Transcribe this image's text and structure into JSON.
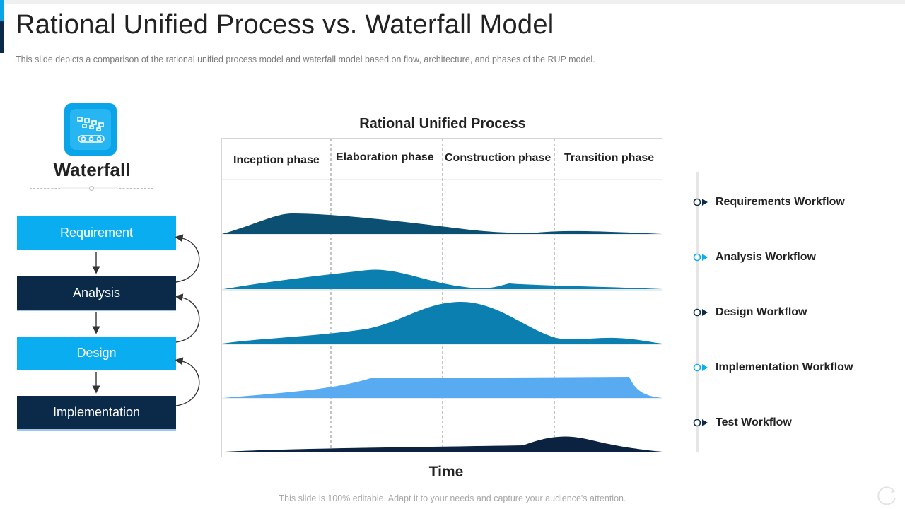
{
  "slide": {
    "title": "Rational Unified Process vs. Waterfall Model",
    "subtitle": "This slide depicts a comparison of the rational unified process model and waterfall model based on flow, architecture, and phases of the RUP model.",
    "footer": "This slide is 100% editable. Adapt it to your needs and capture your audience's attention."
  },
  "waterfall": {
    "title": "Waterfall",
    "icon": "conveyor-icon",
    "steps": [
      {
        "label": "Requirement",
        "style": "light"
      },
      {
        "label": "Analysis",
        "style": "dark"
      },
      {
        "label": "Design",
        "style": "light"
      },
      {
        "label": "Implementation",
        "style": "dark"
      }
    ]
  },
  "rup": {
    "title": "Rational Unified Process",
    "phases": [
      "Inception phase",
      "Elaboration phase",
      "Construction phase",
      "Transition phase"
    ],
    "x_label": "Time",
    "workflows": [
      {
        "label": "Requirements Workflow",
        "color": "#0b4f73",
        "marker": "#0b2a4a"
      },
      {
        "label": "Analysis Workflow",
        "color": "#0a7fb0",
        "marker": "#0aaef0"
      },
      {
        "label": "Design Workflow",
        "color": "#0a7fb0",
        "marker": "#0b2a4a"
      },
      {
        "label": "Implementation Workflow",
        "color": "#58abf1",
        "marker": "#0aaef0"
      },
      {
        "label": "Test Workflow",
        "color": "#0b2340",
        "marker": "#0b2a4a"
      }
    ]
  },
  "colors": {
    "accent_light": "#0aaef0",
    "accent_dark": "#0b2a4a"
  }
}
